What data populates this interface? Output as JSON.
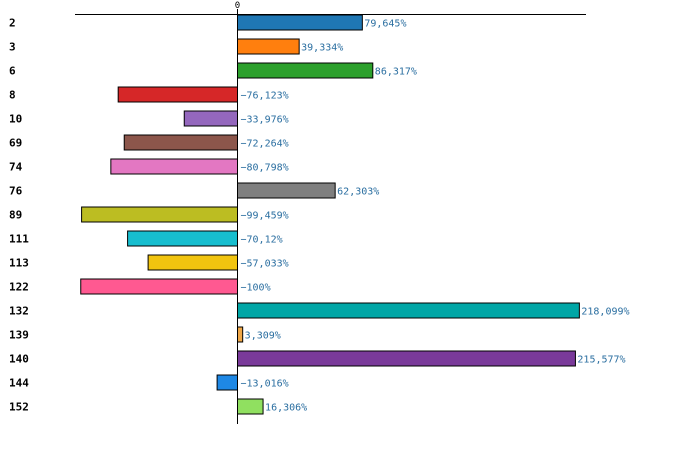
{
  "chart_data": {
    "type": "bar",
    "orientation": "horizontal",
    "title": "",
    "xlabel": "",
    "ylabel": "",
    "xlim": [
      -100,
      218.099
    ],
    "zero_tick_label": "0",
    "grid": false,
    "categories": [
      "2",
      "3",
      "6",
      "8",
      "10",
      "69",
      "74",
      "76",
      "89",
      "111",
      "113",
      "122",
      "132",
      "139",
      "140",
      "144",
      "152"
    ],
    "values": [
      79.645,
      39.334,
      86.317,
      -76.123,
      -33.976,
      -72.264,
      -80.798,
      62.303,
      -99.459,
      -70.12,
      -57.033,
      -100,
      218.099,
      3.309,
      215.577,
      -13.016,
      16.306
    ],
    "value_labels": [
      "79,645%",
      "39,334%",
      "86,317%",
      "−76,123%",
      "−33,976%",
      "−72,264%",
      "−80,798%",
      "62,303%",
      "−99,459%",
      "−70,12%",
      "−57,033%",
      "−100%",
      "218,099%",
      "3,309%",
      "215,577%",
      "−13,016%",
      "16,306%"
    ],
    "colors": [
      "#1f77b4",
      "#ff7f0e",
      "#2ca02c",
      "#d62728",
      "#9467bd",
      "#8c564b",
      "#e377c2",
      "#7f7f7f",
      "#bcbd22",
      "#17becf",
      "#f1c40f",
      "#ff5991",
      "#00a6a6",
      "#f0a848",
      "#7a3a9a",
      "#1e88e5",
      "#90e060"
    ]
  }
}
